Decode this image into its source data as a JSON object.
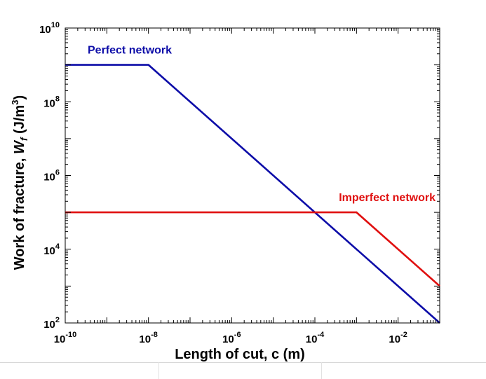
{
  "chart_data": {
    "type": "line",
    "xscale": "log",
    "yscale": "log",
    "xlim": [
      1e-10,
      0.1
    ],
    "ylim": [
      100,
      10000000000
    ],
    "xlabel": "Length of cut, c (m)",
    "ylabel": {
      "prefix": "Work of fracture, ",
      "symbol": "W",
      "subscript": "f",
      "unit": " (J/m",
      "unit_exp": "3",
      "unit_end": ")"
    },
    "grid": false,
    "box": true,
    "x_ticks": [
      {
        "base": "10",
        "exp": "-10",
        "value": 1e-10
      },
      {
        "base": "10",
        "exp": "-8",
        "value": 1e-08
      },
      {
        "base": "10",
        "exp": "-6",
        "value": 1e-06
      },
      {
        "base": "10",
        "exp": "-4",
        "value": 0.0001
      },
      {
        "base": "10",
        "exp": "-2",
        "value": 0.01
      }
    ],
    "y_ticks": [
      {
        "base": "10",
        "exp": "2",
        "value": 100
      },
      {
        "base": "10",
        "exp": "4",
        "value": 10000
      },
      {
        "base": "10",
        "exp": "6",
        "value": 1000000
      },
      {
        "base": "10",
        "exp": "8",
        "value": 100000000
      },
      {
        "base": "10",
        "exp": "10",
        "value": 10000000000
      }
    ],
    "series": [
      {
        "name": "Perfect network",
        "color": "#0d0da8",
        "x": [
          1e-10,
          1e-08,
          0.1
        ],
        "y": [
          1000000000,
          1000000000,
          100
        ]
      },
      {
        "name": "Imperfect network",
        "color": "#e01010",
        "x": [
          1e-10,
          0.001,
          0.1
        ],
        "y": [
          100000,
          100000,
          1000
        ]
      }
    ]
  }
}
